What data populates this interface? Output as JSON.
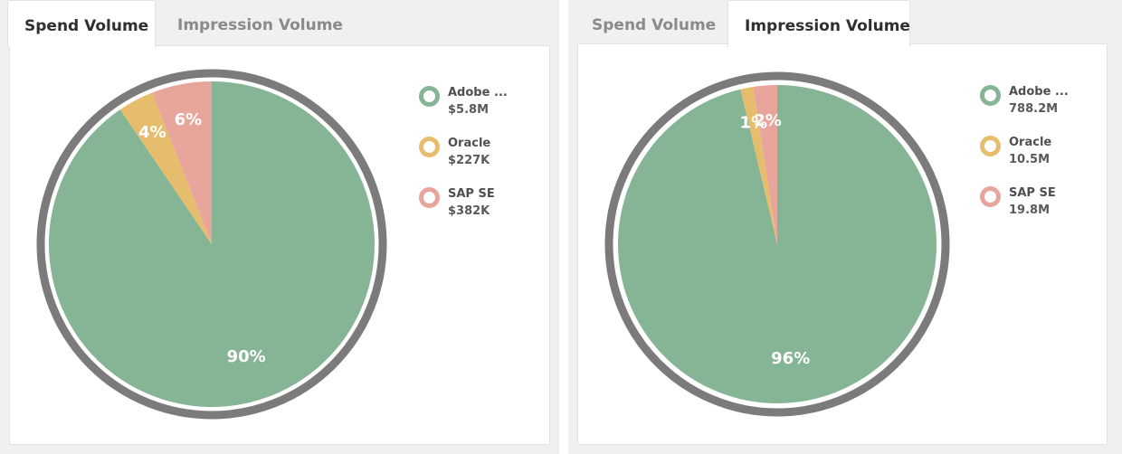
{
  "colors": {
    "adobe": "#86b595",
    "oracle": "#e6bd6c",
    "sap": "#e8a59c",
    "ring": "#7b7b7b"
  },
  "panels": [
    {
      "tabs": [
        {
          "label": "Spend Volume",
          "active": true
        },
        {
          "label": "Impression Volume",
          "active": false
        }
      ],
      "legend": [
        {
          "name": "Adobe ...",
          "value": "$5.8M",
          "color_key": "adobe"
        },
        {
          "name": "Oracle",
          "value": "$227K",
          "color_key": "oracle"
        },
        {
          "name": "SAP SE",
          "value": "$382K",
          "color_key": "sap"
        }
      ]
    },
    {
      "tabs": [
        {
          "label": "Spend Volume",
          "active": false
        },
        {
          "label": "Impression Volume",
          "active": true
        }
      ],
      "legend": [
        {
          "name": "Adobe ...",
          "value": "788.2M",
          "color_key": "adobe"
        },
        {
          "name": "Oracle",
          "value": "10.5M",
          "color_key": "oracle"
        },
        {
          "name": "SAP SE",
          "value": "19.8M",
          "color_key": "sap"
        }
      ]
    }
  ],
  "chart_data": [
    {
      "type": "pie",
      "title": "",
      "categories": [
        "Adobe ...",
        "Oracle",
        "SAP SE"
      ],
      "values": [
        5.8,
        0.227,
        0.382
      ],
      "value_labels": [
        "$5.8M",
        "$227K",
        "$382K"
      ],
      "percent_labels": [
        "90%",
        "4%",
        "6%"
      ],
      "legend": "right"
    },
    {
      "type": "pie",
      "title": "",
      "categories": [
        "Adobe ...",
        "Oracle",
        "SAP SE"
      ],
      "values": [
        788.2,
        10.5,
        19.8
      ],
      "value_labels": [
        "788.2M",
        "10.5M",
        "19.8M"
      ],
      "percent_labels": [
        "96%",
        "1%",
        "2%"
      ],
      "legend": "right"
    }
  ]
}
